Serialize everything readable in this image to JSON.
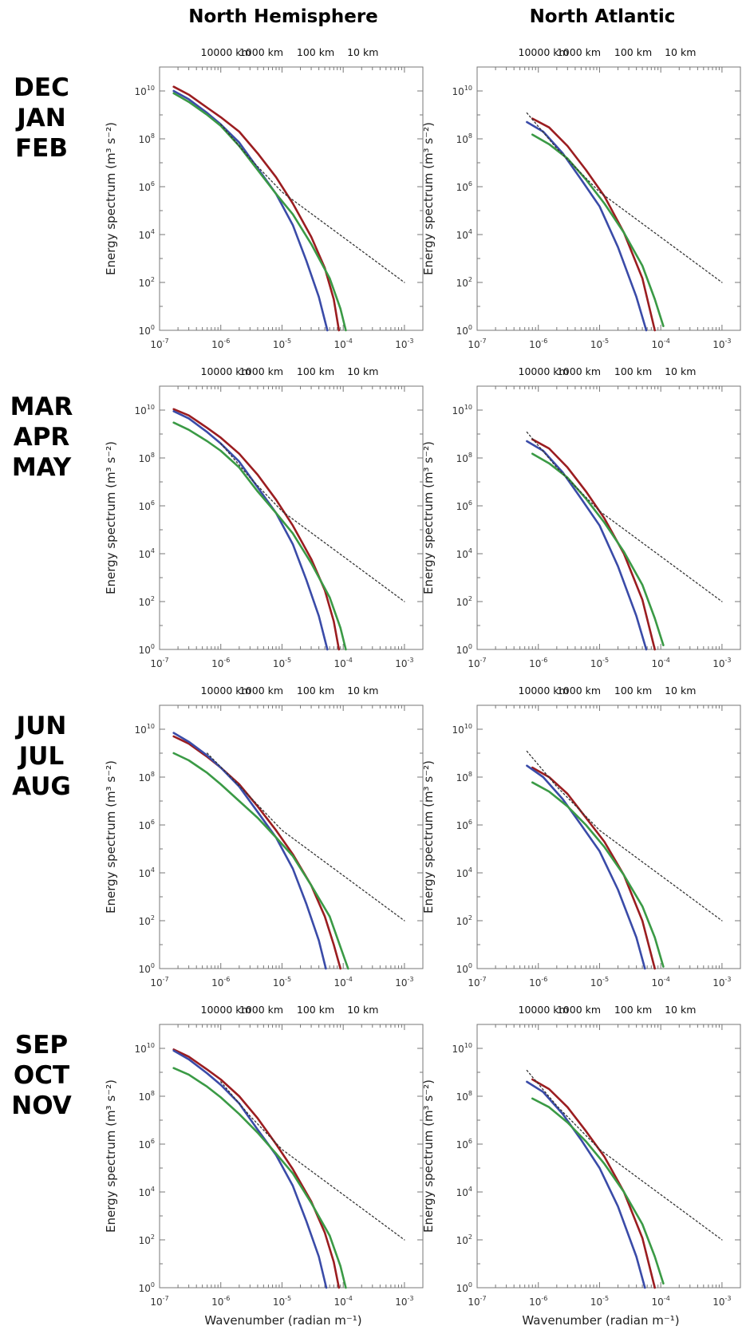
{
  "column_titles": [
    "North Hemisphere",
    "North Atlantic"
  ],
  "row_titles": [
    [
      "DEC",
      "JAN",
      "FEB"
    ],
    [
      "MAR",
      "APR",
      "MAY"
    ],
    [
      "JUN",
      "JUL",
      "AUG"
    ],
    [
      "SEP",
      "OCT",
      "NOV"
    ]
  ],
  "axis": {
    "y_label": "Energy spectrum (m³ s⁻²)",
    "x_label": "Wavenumber (radian m⁻¹)",
    "y_scale": "log",
    "x_scale": "log",
    "x_ticks": [
      {
        "base": "10",
        "exp": "-7"
      },
      {
        "base": "10",
        "exp": "-6"
      },
      {
        "base": "10",
        "exp": "-5"
      },
      {
        "base": "10",
        "exp": "-4"
      },
      {
        "base": "10",
        "exp": "-3"
      }
    ],
    "y_ticks": [
      {
        "base": "10",
        "exp": "0"
      },
      {
        "base": "10",
        "exp": "2"
      },
      {
        "base": "10",
        "exp": "4"
      },
      {
        "base": "10",
        "exp": "6"
      },
      {
        "base": "10",
        "exp": "8"
      },
      {
        "base": "10",
        "exp": "10"
      }
    ],
    "top_ticks": [
      "10000 km",
      "1000 km",
      "100 km",
      "10 km"
    ],
    "xlim": [
      1e-07,
      0.002
    ],
    "ylim": [
      1,
      100000000000.0
    ],
    "grid": false
  },
  "series_colors": {
    "red": "#9b1d20",
    "blue": "#3a4ba8",
    "green": "#3a9a45",
    "reference": "#333333"
  },
  "chart_data": [
    {
      "type": "line",
      "region": "North Hemisphere",
      "season": "DEC JAN FEB",
      "series": [
        {
          "color": "red",
          "x": [
            1.7e-07,
            3e-07,
            6e-07,
            1e-06,
            2e-06,
            4e-06,
            8e-06,
            1.5e-05,
            3e-05,
            5e-05,
            7e-05,
            8.5e-05
          ],
          "y": [
            15000000000,
            7000000000,
            2000000000,
            800000000,
            200000000,
            25000000,
            2500000,
            200000,
            8000,
            400,
            20,
            1
          ]
        },
        {
          "color": "blue",
          "x": [
            1.7e-07,
            3e-07,
            6e-07,
            1e-06,
            2e-06,
            4e-06,
            8e-06,
            1.5e-05,
            2.5e-05,
            4e-05,
            5.5e-05
          ],
          "y": [
            10000000000,
            4500000000,
            1200000000,
            400000000,
            70000000,
            6000000,
            500000,
            25000,
            800,
            25,
            1
          ]
        },
        {
          "color": "green",
          "x": [
            1.7e-07,
            3e-07,
            6e-07,
            1e-06,
            2e-06,
            4e-06,
            8e-06,
            1.5e-05,
            3e-05,
            6e-05,
            9e-05,
            0.00011
          ],
          "y": [
            8000000000,
            3500000000,
            1000000000,
            350000000,
            50000000,
            5000000,
            500000,
            70000,
            4000,
            150,
            8,
            1
          ]
        },
        {
          "color": "reference",
          "dashed": true,
          "x": [
            1e-06,
            3e-06,
            1e-05,
            0.001
          ],
          "y": [
            400000000,
            15000000,
            600000,
            100
          ]
        }
      ]
    },
    {
      "type": "line",
      "region": "North Atlantic",
      "season": "DEC JAN FEB",
      "series": [
        {
          "color": "red",
          "x": [
            8e-07,
            1.5e-06,
            3e-06,
            6e-06,
            1.2e-05,
            2.5e-05,
            5e-05,
            8e-05
          ],
          "y": [
            700000000,
            300000000,
            50000000,
            5000000,
            400000,
            12000,
            150,
            1
          ]
        },
        {
          "color": "blue",
          "x": [
            6.5e-07,
            1.2e-06,
            2.5e-06,
            5e-06,
            1e-05,
            2e-05,
            4e-05,
            5.8e-05
          ],
          "y": [
            500000000,
            200000000,
            25000000,
            2000000,
            150000,
            3000,
            25,
            1
          ]
        },
        {
          "color": "green",
          "x": [
            8e-07,
            1.5e-06,
            3e-06,
            6e-06,
            1.2e-05,
            2.5e-05,
            5e-05,
            8e-05,
            0.00011
          ],
          "y": [
            150000000,
            60000000,
            15000000,
            2000000,
            200000,
            12000,
            500,
            20,
            1.5
          ]
        },
        {
          "color": "reference",
          "dashed": true,
          "x": [
            6.5e-07,
            2e-06,
            1e-05,
            0.001
          ],
          "y": [
            1200000000,
            40000000,
            600000,
            100
          ]
        }
      ]
    },
    {
      "type": "line",
      "region": "North Hemisphere",
      "season": "MAR APR MAY",
      "series": [
        {
          "color": "red",
          "x": [
            1.7e-07,
            3e-07,
            6e-07,
            1e-06,
            2e-06,
            4e-06,
            8e-06,
            1.5e-05,
            3e-05,
            5e-05,
            7e-05,
            8.5e-05
          ],
          "y": [
            11000000000,
            6000000000,
            1800000000,
            700000000,
            150000000,
            20000000,
            1800000,
            150000,
            6000,
            300,
            15,
            1
          ]
        },
        {
          "color": "blue",
          "x": [
            1.7e-07,
            3e-07,
            6e-07,
            1e-06,
            2e-06,
            4e-06,
            8e-06,
            1.5e-05,
            2.5e-05,
            4e-05,
            5.5e-05
          ],
          "y": [
            9000000000,
            4500000000,
            1200000000,
            400000000,
            70000000,
            6000000,
            500000,
            25000,
            800,
            25,
            1
          ]
        },
        {
          "color": "green",
          "x": [
            1.7e-07,
            3e-07,
            6e-07,
            1e-06,
            2e-06,
            4e-06,
            8e-06,
            1.5e-05,
            3e-05,
            6e-05,
            9e-05,
            0.00011
          ],
          "y": [
            3000000000,
            1500000000,
            500000000,
            200000000,
            40000000,
            4000000,
            500000,
            70000,
            4000,
            150,
            8,
            1
          ]
        },
        {
          "color": "reference",
          "dashed": true,
          "x": [
            1e-06,
            3e-06,
            1e-05,
            0.001
          ],
          "y": [
            400000000,
            15000000,
            600000,
            100
          ]
        }
      ]
    },
    {
      "type": "line",
      "region": "North Atlantic",
      "season": "MAR APR MAY",
      "series": [
        {
          "color": "red",
          "x": [
            8e-07,
            1.5e-06,
            3e-06,
            6e-06,
            1.2e-05,
            2.5e-05,
            5e-05,
            8e-05
          ],
          "y": [
            600000000,
            250000000,
            40000000,
            4000000,
            300000,
            10000,
            120,
            1
          ]
        },
        {
          "color": "blue",
          "x": [
            6.5e-07,
            1.2e-06,
            2.5e-06,
            5e-06,
            1e-05,
            2e-05,
            4e-05,
            5.8e-05
          ],
          "y": [
            500000000,
            200000000,
            25000000,
            2000000,
            150000,
            3000,
            25,
            1
          ]
        },
        {
          "color": "green",
          "x": [
            8e-07,
            1.5e-06,
            3e-06,
            6e-06,
            1.2e-05,
            2.5e-05,
            5e-05,
            8e-05,
            0.00011
          ],
          "y": [
            150000000,
            60000000,
            15000000,
            2000000,
            200000,
            12000,
            500,
            20,
            1.5
          ]
        },
        {
          "color": "reference",
          "dashed": true,
          "x": [
            6.5e-07,
            2e-06,
            1e-05,
            0.001
          ],
          "y": [
            1200000000,
            40000000,
            600000,
            100
          ]
        }
      ]
    },
    {
      "type": "line",
      "region": "North Hemisphere",
      "season": "JUN JUL AUG",
      "series": [
        {
          "color": "red",
          "x": [
            1.7e-07,
            3e-07,
            6e-07,
            1e-06,
            2e-06,
            4e-06,
            8e-06,
            1.5e-05,
            3e-05,
            5e-05,
            7e-05,
            9e-05
          ],
          "y": [
            5000000000,
            2500000000,
            700000000,
            250000000,
            50000000,
            6000000,
            600000,
            60000,
            3000,
            150,
            10,
            1
          ]
        },
        {
          "color": "blue",
          "x": [
            1.7e-07,
            3e-07,
            6e-07,
            1e-06,
            2e-06,
            4e-06,
            8e-06,
            1.5e-05,
            2.5e-05,
            4e-05,
            5.2e-05
          ],
          "y": [
            7000000000,
            3000000000,
            800000000,
            250000000,
            40000000,
            3500000,
            300000,
            15000,
            500,
            15,
            1
          ]
        },
        {
          "color": "green",
          "x": [
            1.7e-07,
            3e-07,
            6e-07,
            1e-06,
            2e-06,
            4e-06,
            8e-06,
            1.5e-05,
            3e-05,
            6e-05,
            9e-05,
            0.00012
          ],
          "y": [
            1000000000,
            500000000,
            150000000,
            50000000,
            10000000,
            2000000,
            300000,
            50000,
            3000,
            150,
            8,
            1
          ]
        },
        {
          "color": "reference",
          "dashed": true,
          "x": [
            6e-07,
            3e-06,
            1e-05,
            0.001
          ],
          "y": [
            1000000000,
            15000000,
            600000,
            100
          ]
        }
      ]
    },
    {
      "type": "line",
      "region": "North Atlantic",
      "season": "JUN JUL AUG",
      "series": [
        {
          "color": "red",
          "x": [
            8e-07,
            1.5e-06,
            3e-06,
            6e-06,
            1.2e-05,
            2.5e-05,
            5e-05,
            8e-05
          ],
          "y": [
            250000000,
            100000000,
            20000000,
            2000000,
            200000,
            8000,
            100,
            1
          ]
        },
        {
          "color": "blue",
          "x": [
            6.5e-07,
            1.2e-06,
            2.5e-06,
            5e-06,
            1e-05,
            2e-05,
            4e-05,
            5.5e-05
          ],
          "y": [
            300000000,
            100000000,
            12000000,
            1000000,
            80000,
            2000,
            20,
            1
          ]
        },
        {
          "color": "green",
          "x": [
            8e-07,
            1.5e-06,
            3e-06,
            6e-06,
            1.2e-05,
            2.5e-05,
            5e-05,
            8e-05,
            0.00011
          ],
          "y": [
            60000000,
            25000000,
            6000000,
            1000000,
            120000,
            8000,
            400,
            20,
            1.2
          ]
        },
        {
          "color": "reference",
          "dashed": true,
          "x": [
            6.5e-07,
            2e-06,
            1e-05,
            0.001
          ],
          "y": [
            1200000000,
            40000000,
            600000,
            100
          ]
        }
      ]
    },
    {
      "type": "line",
      "region": "North Hemisphere",
      "season": "SEP OCT NOV",
      "series": [
        {
          "color": "red",
          "x": [
            1.7e-07,
            3e-07,
            6e-07,
            1e-06,
            2e-06,
            4e-06,
            8e-06,
            1.5e-05,
            3e-05,
            5e-05,
            7e-05,
            8.5e-05
          ],
          "y": [
            9000000000,
            4500000000,
            1300000000,
            500000000,
            100000000,
            12000000,
            1000000,
            90000,
            4000,
            200,
            12,
            1
          ]
        },
        {
          "color": "blue",
          "x": [
            1.7e-07,
            3e-07,
            6e-07,
            1e-06,
            2e-06,
            4e-06,
            8e-06,
            1.5e-05,
            2.5e-05,
            4e-05,
            5.3e-05
          ],
          "y": [
            8000000000,
            3500000000,
            900000000,
            300000000,
            50000000,
            4000000,
            350000,
            18000,
            600,
            20,
            1
          ]
        },
        {
          "color": "green",
          "x": [
            1.7e-07,
            3e-07,
            6e-07,
            1e-06,
            2e-06,
            4e-06,
            8e-06,
            1.5e-05,
            3e-05,
            6e-05,
            9e-05,
            0.00011
          ],
          "y": [
            1500000000,
            800000000,
            250000000,
            90000000,
            18000000,
            3000000,
            400000,
            60000,
            3500,
            150,
            8,
            1
          ]
        },
        {
          "color": "reference",
          "dashed": true,
          "x": [
            1e-06,
            3e-06,
            1e-05,
            0.001
          ],
          "y": [
            400000000,
            15000000,
            600000,
            100
          ]
        }
      ]
    },
    {
      "type": "line",
      "region": "North Atlantic",
      "season": "SEP OCT NOV",
      "series": [
        {
          "color": "red",
          "x": [
            8e-07,
            1.5e-06,
            3e-06,
            6e-06,
            1.2e-05,
            2.5e-05,
            5e-05,
            8e-05
          ],
          "y": [
            500000000,
            200000000,
            35000000,
            3500000,
            300000,
            10000,
            120,
            1
          ]
        },
        {
          "color": "blue",
          "x": [
            6.5e-07,
            1.2e-06,
            2.5e-06,
            5e-06,
            1e-05,
            2e-05,
            4e-05,
            5.5e-05
          ],
          "y": [
            400000000,
            150000000,
            18000000,
            1500000,
            100000,
            2500,
            20,
            1
          ]
        },
        {
          "color": "green",
          "x": [
            8e-07,
            1.5e-06,
            3e-06,
            6e-06,
            1.2e-05,
            2.5e-05,
            5e-05,
            8e-05,
            0.00011
          ],
          "y": [
            80000000,
            35000000,
            8000000,
            1300000,
            150000,
            10000,
            450,
            20,
            1.5
          ]
        },
        {
          "color": "reference",
          "dashed": true,
          "x": [
            6.5e-07,
            2e-06,
            1e-05,
            0.001
          ],
          "y": [
            1200000000,
            40000000,
            600000,
            100
          ]
        }
      ]
    }
  ]
}
